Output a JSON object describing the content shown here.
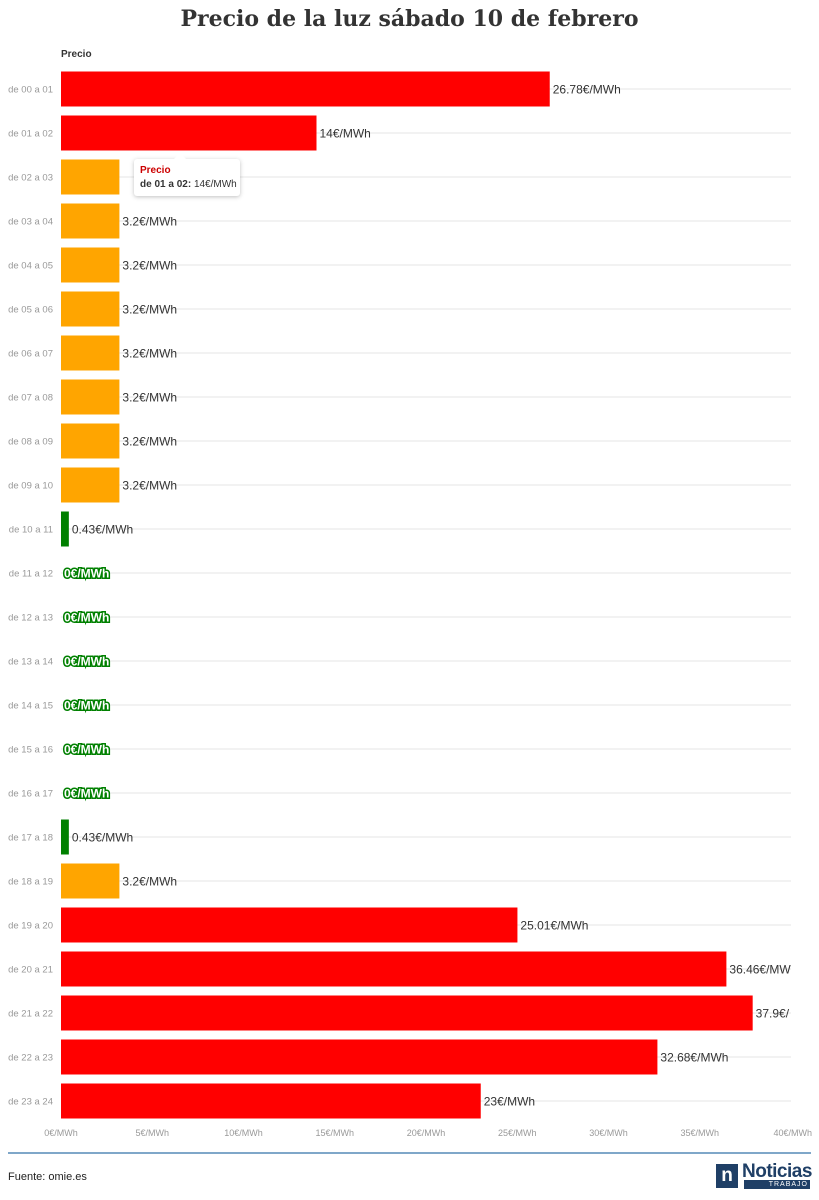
{
  "title": "Precio de la luz sábado 10 de febrero",
  "source": "Fuente: omie.es",
  "logo": {
    "word": "Noticias",
    "sub": "TRABAJO",
    "mark": "n"
  },
  "colors": {
    "high": "#ff0000",
    "mid": "#ffa500",
    "low": "#008000",
    "grid": "#e6e6e6"
  },
  "tooltip": {
    "series": "Precio",
    "category": "de 01 a 02:",
    "value": "14€/MWh"
  },
  "chart_data": {
    "type": "bar",
    "orientation": "horizontal",
    "title": "Precio de la luz sábado 10 de febrero",
    "series_name": "Precio",
    "unit": "€/MWh",
    "xlim": [
      0,
      40
    ],
    "x_ticks": [
      "0€/MWh",
      "5€/MWh",
      "10€/MWh",
      "15€/MWh",
      "20€/MWh",
      "25€/MWh",
      "30€/MWh",
      "35€/MWh",
      "40€/MWh"
    ],
    "categories": [
      "de 00 a 01",
      "de 01 a 02",
      "de 02 a 03",
      "de 03 a 04",
      "de 04 a 05",
      "de 05 a 06",
      "de 06 a 07",
      "de 07 a 08",
      "de 08 a 09",
      "de 09 a 10",
      "de 10 a 11",
      "de 11 a 12",
      "de 12 a 13",
      "de 13 a 14",
      "de 14 a 15",
      "de 15 a 16",
      "de 16 a 17",
      "de 17 a 18",
      "de 18 a 19",
      "de 19 a 20",
      "de 20 a 21",
      "de 21 a 22",
      "de 22 a 23",
      "de 23 a 24"
    ],
    "values": [
      26.78,
      14,
      3.2,
      3.2,
      3.2,
      3.2,
      3.2,
      3.2,
      3.2,
      3.2,
      0.43,
      0,
      0,
      0,
      0,
      0,
      0,
      0.43,
      3.2,
      25.01,
      36.46,
      37.9,
      32.68,
      23
    ],
    "labels": [
      "26.78€/MWh",
      "14€/MWh",
      "",
      "3.2€/MWh",
      "3.2€/MWh",
      "3.2€/MWh",
      "3.2€/MWh",
      "3.2€/MWh",
      "3.2€/MWh",
      "3.2€/MWh",
      "0.43€/MWh",
      "0€/MWh",
      "0€/MWh",
      "0€/MWh",
      "0€/MWh",
      "0€/MWh",
      "0€/MWh",
      "0.43€/MWh",
      "3.2€/MWh",
      "25.01€/MWh",
      "36.46€/MW",
      "37.9€/",
      "32.68€/MWh",
      "23€/MWh"
    ],
    "bar_colors": [
      "high",
      "high",
      "mid",
      "mid",
      "mid",
      "mid",
      "mid",
      "mid",
      "mid",
      "mid",
      "low",
      "low",
      "low",
      "low",
      "low",
      "low",
      "low",
      "low",
      "mid",
      "high",
      "high",
      "high",
      "high",
      "high"
    ],
    "grid": true,
    "legend": "none"
  }
}
